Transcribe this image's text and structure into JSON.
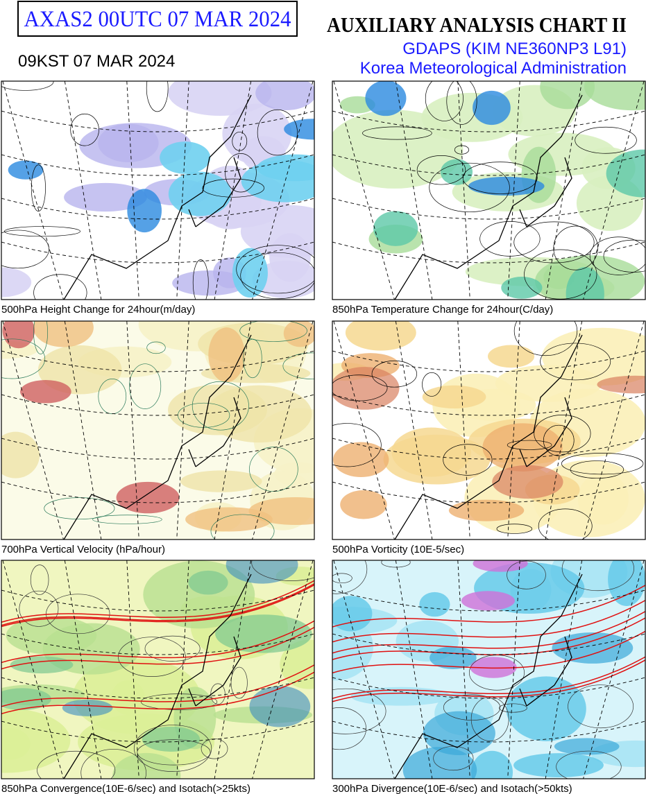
{
  "header": {
    "box_title": "AXAS2  00UTC 07 MAR 2024",
    "kst_time": "09KST 07 MAR 2024",
    "title": "AUXILIARY ANALYSIS CHART II",
    "model": "GDAPS (KIM NE360NP3 L91)",
    "agency": "Korea Meteorological Administration"
  },
  "panels": [
    {
      "caption": "500hPa Height Change for 24hour(m/day)"
    },
    {
      "caption": "850hPa Temperature Change for 24hour(C/day)"
    },
    {
      "caption": "700hPa Vertical Velocity (hPa/hour)"
    },
    {
      "caption": "500hPa Vorticity (10E-5/sec)"
    },
    {
      "caption": "850hPa Convergence(10E-6/sec) and Isotach(>25kts)"
    },
    {
      "caption": "300hPa Divergence(10E-6/sec) and Isotach(>50kts)"
    }
  ]
}
